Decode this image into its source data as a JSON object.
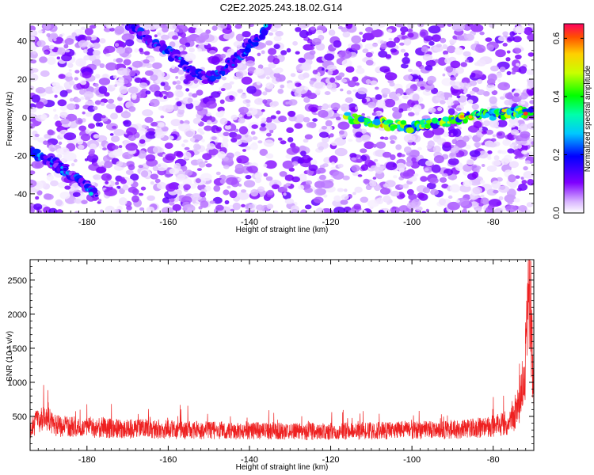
{
  "figure_title": "C2E2.2025.243.18.02.G14",
  "chart_data": [
    {
      "type": "heatmap",
      "title": "C2E2.2025.243.18.02.G14",
      "xlabel": "Height of straight line (km)",
      "ylabel": "Frequency (Hz)",
      "xlim": [
        -194,
        -70
      ],
      "ylim": [
        -50,
        49
      ],
      "xticks": [
        -180,
        -160,
        -140,
        -120,
        -100,
        -80
      ],
      "yticks": [
        -40,
        -20,
        0,
        20,
        40
      ],
      "colorbar": {
        "label": "Normalized spectral amplitude",
        "range": [
          0,
          0.65
        ],
        "ticks": [
          0.0,
          0.2,
          0.4,
          0.6
        ],
        "tick_labels": [
          "0.0",
          "0.2",
          "0.4",
          "0.6"
        ]
      },
      "features": [
        {
          "name": "diagonal-track-lower",
          "x": [
            -194,
            -188,
            -184,
            -180,
            -178
          ],
          "y": [
            -18,
            -24,
            -30,
            -36,
            -40
          ],
          "peak": 0.3
        },
        {
          "name": "diagonal-track-upper",
          "x": [
            -170,
            -166,
            -160,
            -155,
            -150,
            -145,
            -140,
            -135
          ],
          "y": [
            49,
            43,
            35,
            25,
            20,
            27,
            38,
            48
          ],
          "peak": 0.28
        },
        {
          "name": "zero-frequency-track",
          "x": [
            -116,
            -108,
            -100,
            -92,
            -84,
            -78,
            -74,
            -71
          ],
          "y": [
            0,
            -3,
            -5,
            -2,
            1,
            2,
            3,
            2
          ],
          "peak": 0.62
        }
      ]
    },
    {
      "type": "line",
      "xlabel": "Height of straight line (km)",
      "ylabel": "SNR (10 * v/v)",
      "xlim": [
        -194,
        -70
      ],
      "ylim": [
        0,
        2800
      ],
      "xticks": [
        -180,
        -160,
        -140,
        -120,
        -100,
        -80
      ],
      "yticks": [
        500,
        1000,
        1500,
        2000,
        2500
      ],
      "color": "#ee2020",
      "series": [
        {
          "name": "SNR",
          "x": [
            -194,
            -192,
            -190,
            -188,
            -186,
            -184,
            -182,
            -180,
            -178,
            -176,
            -174,
            -172,
            -170,
            -168,
            -166,
            -164,
            -162,
            -160,
            -158,
            -156,
            -154,
            -152,
            -150,
            -148,
            -146,
            -144,
            -142,
            -140,
            -138,
            -136,
            -134,
            -132,
            -130,
            -128,
            -126,
            -124,
            -122,
            -120,
            -118,
            -116,
            -114,
            -112,
            -110,
            -108,
            -106,
            -104,
            -102,
            -100,
            -98,
            -96,
            -94,
            -92,
            -90,
            -88,
            -86,
            -84,
            -82,
            -80,
            -78,
            -76,
            -75,
            -74,
            -73,
            -72,
            -71.5,
            -71,
            -70.5,
            -70
          ],
          "y": [
            320,
            420,
            460,
            380,
            350,
            360,
            340,
            350,
            330,
            340,
            320,
            330,
            310,
            320,
            330,
            310,
            300,
            310,
            300,
            290,
            300,
            290,
            300,
            300,
            290,
            280,
            290,
            290,
            290,
            280,
            290,
            280,
            270,
            280,
            270,
            280,
            270,
            280,
            280,
            290,
            280,
            290,
            280,
            290,
            290,
            290,
            300,
            300,
            290,
            300,
            300,
            300,
            310,
            310,
            320,
            330,
            340,
            360,
            380,
            420,
            480,
            600,
            900,
            1350,
            1800,
            2650,
            1500,
            900
          ]
        }
      ]
    }
  ]
}
